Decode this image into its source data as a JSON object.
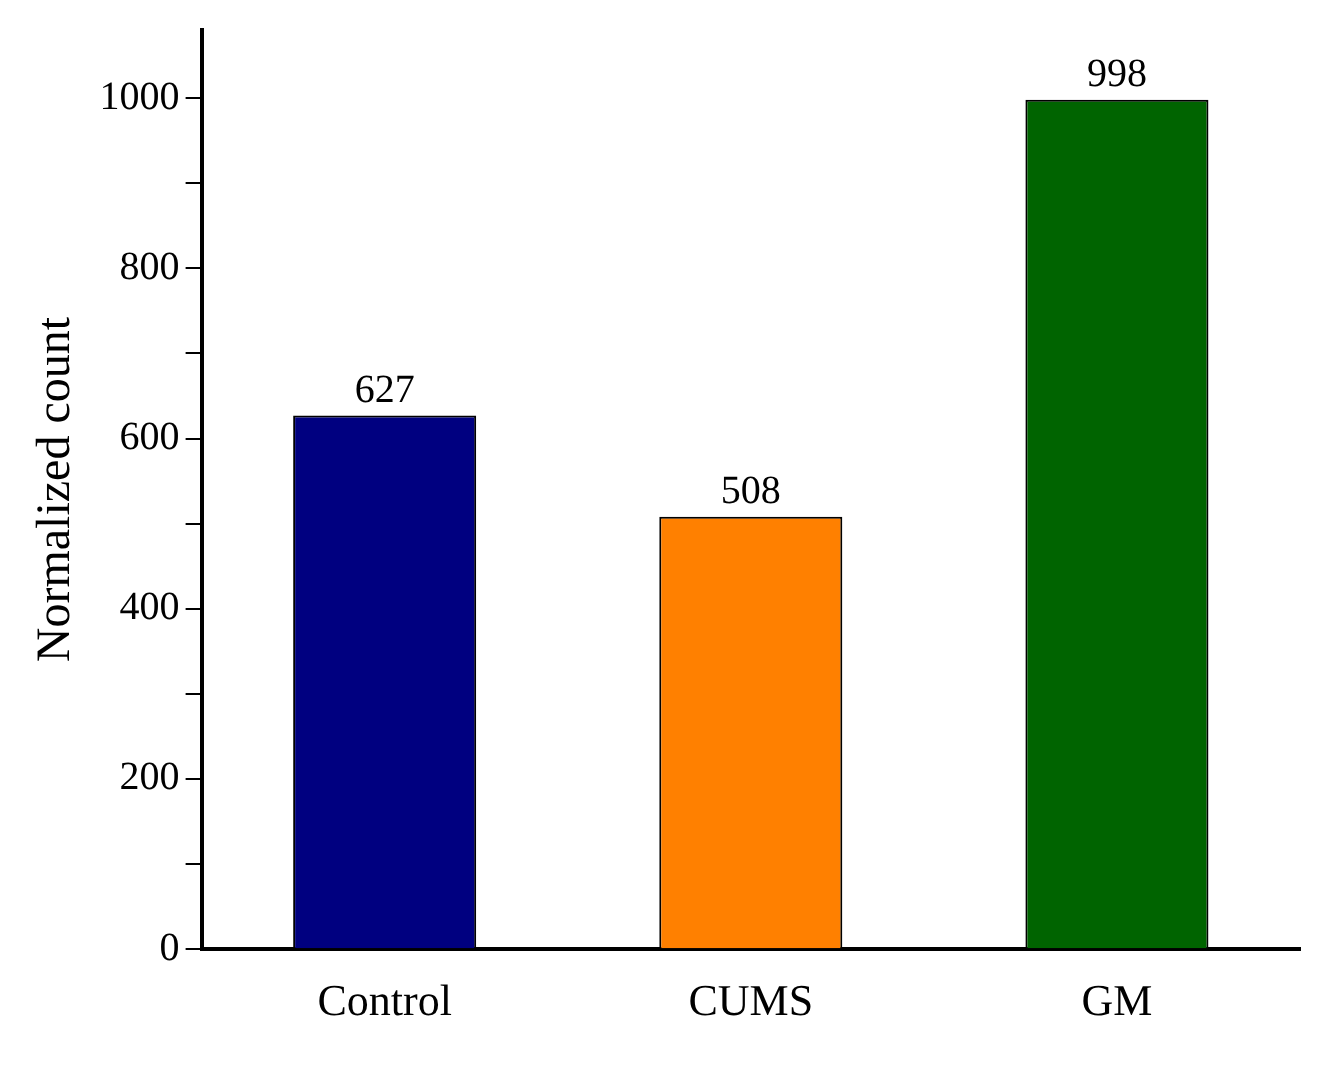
{
  "chart_data": {
    "type": "bar",
    "ylabel": "Normalized count",
    "categories": [
      "Control",
      "CUMS",
      "GM"
    ],
    "values": [
      627,
      508,
      998
    ],
    "colors": [
      "#000080",
      "#ff8000",
      "#006400"
    ],
    "ylim": [
      0,
      1080
    ],
    "yticks": [
      0,
      {
        "value": 100,
        "label": null
      },
      200,
      {
        "value": 300,
        "label": null
      },
      400,
      {
        "value": 500,
        "label": null
      },
      600,
      {
        "value": 700,
        "label": null
      },
      800,
      {
        "value": 900,
        "label": null
      },
      1000
    ],
    "data_labels": true,
    "grid": false,
    "legend": false
  }
}
